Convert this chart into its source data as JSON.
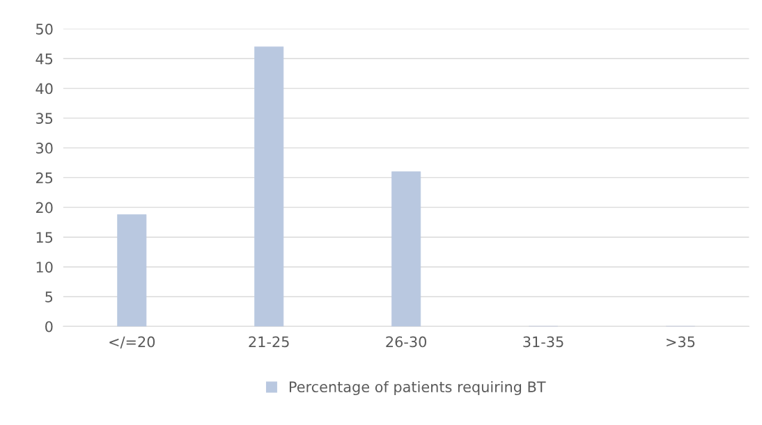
{
  "chart_data": {
    "type": "bar",
    "categories": [
      "</=20",
      "21-25",
      "26-30",
      "31-35",
      ">35"
    ],
    "series": [
      {
        "name": "Percentage of patients requiring BT",
        "color": "#b9c8e0",
        "values": [
          18.8,
          47,
          26,
          0,
          0
        ]
      }
    ],
    "ylim": [
      0,
      50
    ],
    "yticks": [
      0,
      5,
      10,
      15,
      20,
      25,
      30,
      35,
      40,
      45,
      50
    ],
    "grid": "y",
    "legend": "bottom"
  }
}
